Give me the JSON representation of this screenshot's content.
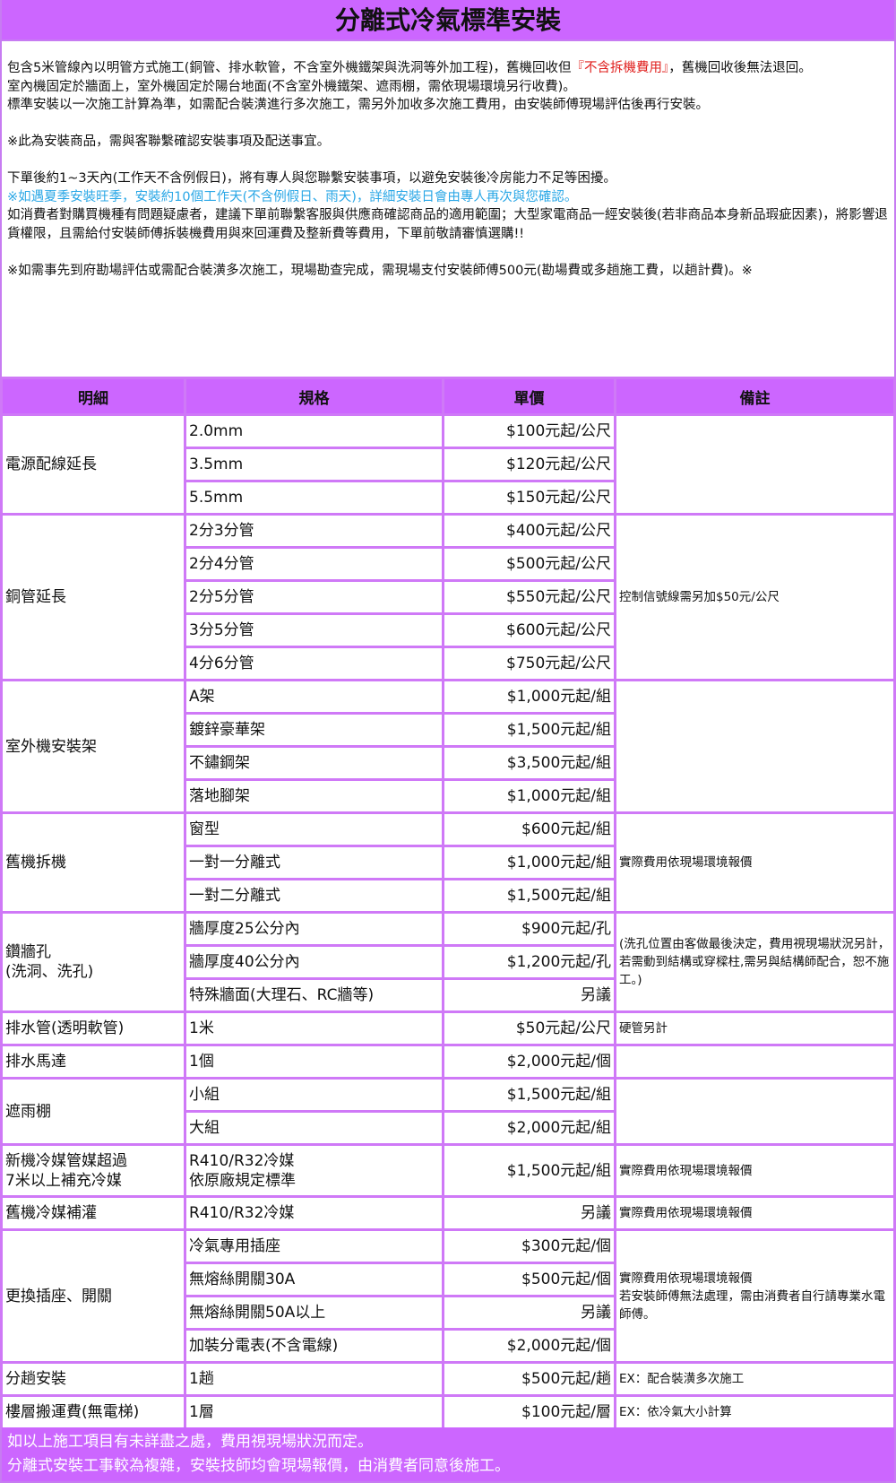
{
  "title": "分離式冷氣標準安裝",
  "notes": {
    "l1a": "包含5米管線內以明管方式施工(銅管、排水軟管，不含室外機鐵架與洗洞等外加工程)，舊機回收但",
    "l1red": "『不含拆機費用』",
    "l1b": "，舊機回收後無法退回。",
    "l2": "室內機固定於牆面上，室外機固定於陽台地面(不含室外機鐵架、遮雨棚，需依現場環境另行收費)。",
    "l3": "標準安裝以一次施工計算為準，如需配合裝潢進行多次施工，需另外加收多次施工費用，由安裝師傅現場評估後再行安裝。",
    "l4": "※此為安裝商品，需與客聯繫確認安裝事項及配送事宜。",
    "l5": "下單後約1~3天內(工作天不含例假日)，將有專人與您聯繫安裝事項，以避免安裝後冷房能力不足等困擾。",
    "l6": "※如遇夏季安裝旺季，安裝約10個工作天(不含例假日、雨天)，詳細安裝日會由專人再次與您確認。",
    "l7": "如消費者對購買機種有問題疑慮者，建議下單前聯繫客服與供應商確認商品的適用範圍；大型家電商品一經安裝後(若非商品本身新品瑕疵因素)，將影響退貨權限，且需給付安裝師傅拆裝機費用與來回運費及整新費等費用，下單前敬請審慎選購!!",
    "l8": "※如需事先到府勘場評估或需配合裝潢多次施工，現場勘查完成，需現場支付安裝師傅500元(勘場費或多趟施工費，以趟計費)。※"
  },
  "headers": [
    "明細",
    "規格",
    "單價",
    "備註"
  ],
  "groups": [
    {
      "name": "電源配線延長",
      "note": "",
      "rows": [
        [
          "2.0mm",
          "$100元起/公尺"
        ],
        [
          "3.5mm",
          "$120元起/公尺"
        ],
        [
          "5.5mm",
          "$150元起/公尺"
        ]
      ]
    },
    {
      "name": "銅管延長",
      "note": "控制信號線需另加$50元/公尺",
      "rows": [
        [
          "2分3分管",
          "$400元起/公尺"
        ],
        [
          "2分4分管",
          "$500元起/公尺"
        ],
        [
          "2分5分管",
          "$550元起/公尺"
        ],
        [
          "3分5分管",
          "$600元起/公尺"
        ],
        [
          "4分6分管",
          "$750元起/公尺"
        ]
      ]
    },
    {
      "name": "室外機安裝架",
      "note": "",
      "rows": [
        [
          "A架",
          "$1,000元起/組"
        ],
        [
          "鍍鋅豪華架",
          "$1,500元起/組"
        ],
        [
          "不鏽鋼架",
          "$3,500元起/組"
        ],
        [
          "落地腳架",
          "$1,000元起/組"
        ]
      ]
    },
    {
      "name": "舊機拆機",
      "note": "實際費用依現場環境報價",
      "rows": [
        [
          "窗型",
          "$600元起/組"
        ],
        [
          "一對一分離式",
          "$1,000元起/組"
        ],
        [
          "一對二分離式",
          "$1,500元起/組"
        ]
      ]
    },
    {
      "name": "鑽牆孔\n(洗洞、洗孔)",
      "note": "(洗孔位置由客做最後決定，費用視現場狀況另計，若需動到結構或穿樑柱,需另與結構師配合，恕不施工。)",
      "rows": [
        [
          "牆厚度25公分內",
          "$900元起/孔"
        ],
        [
          "牆厚度40公分內",
          "$1,200元起/孔"
        ],
        [
          "特殊牆面(大理石、RC牆等)",
          "另議"
        ]
      ]
    },
    {
      "name": "排水管(透明軟管)",
      "note": "硬管另計",
      "rows": [
        [
          "1米",
          "$50元起/公尺"
        ]
      ]
    },
    {
      "name": "排水馬達",
      "note": "",
      "rows": [
        [
          "1個",
          "$2,000元起/個"
        ]
      ]
    },
    {
      "name": "遮雨棚",
      "note": "",
      "rows": [
        [
          "小組",
          "$1,500元起/組"
        ],
        [
          "大組",
          "$2,000元起/組"
        ]
      ]
    },
    {
      "name": "新機冷媒管媒超過\n7米以上補充冷媒",
      "note": "實際費用依現場環境報價",
      "tall": true,
      "rows": [
        [
          "R410/R32冷媒\n依原廠規定標準",
          "$1,500元起/組"
        ]
      ]
    },
    {
      "name": "舊機冷媒補灌",
      "note": "實際費用依現場環境報價",
      "rows": [
        [
          "R410/R32冷媒",
          "另議"
        ]
      ]
    },
    {
      "name": "更換插座、開關",
      "note": "實際費用依現場環境報價\n若安裝師傅無法處理，需由消費者自行請專業水電師傅。",
      "rows": [
        [
          "冷氣專用插座",
          "$300元起/個"
        ],
        [
          "無熔絲開關30A",
          "$500元起/個"
        ],
        [
          "無熔絲開關50A以上",
          "另議"
        ],
        [
          "加裝分電表(不含電線)",
          "$2,000元起/個"
        ]
      ]
    },
    {
      "name": "分趟安裝",
      "note": "EX：配合裝潢多次施工",
      "rows": [
        [
          "1趟",
          "$500元起/趟"
        ]
      ]
    },
    {
      "name": "樓層搬運費(無電梯)",
      "note": "EX：依冷氣大小計算",
      "rows": [
        [
          "1層",
          "$100元起/層"
        ]
      ]
    }
  ],
  "footer": [
    "如以上施工項目有未詳盡之處，費用視現場狀況而定。",
    "分離式安裝工事較為複雜，安裝技師均會現場報價，由消費者同意後施工。"
  ]
}
